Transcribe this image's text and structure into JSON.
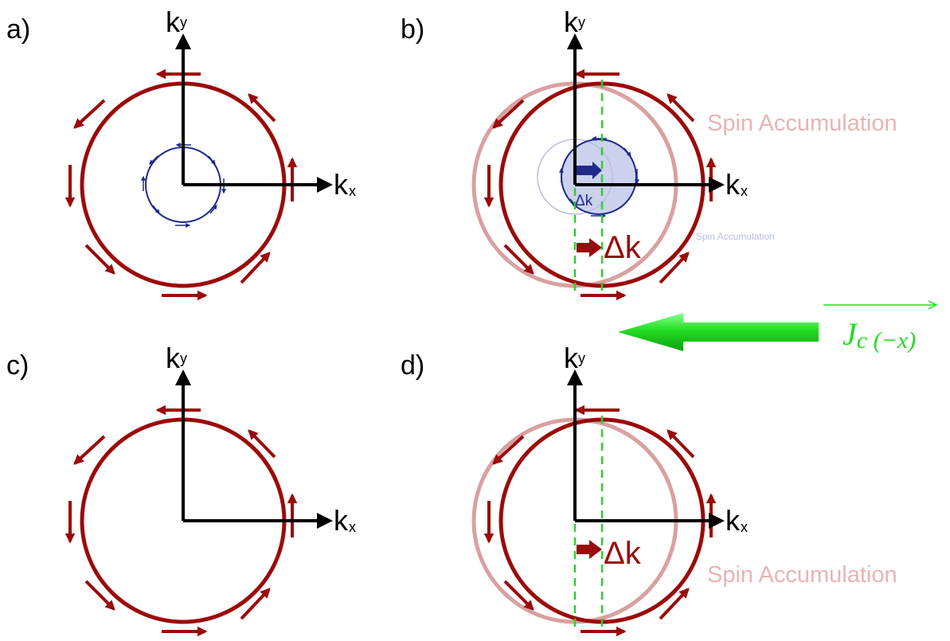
{
  "panels": {
    "a": {
      "label": "a)"
    },
    "b": {
      "label": "b)"
    },
    "c": {
      "label": "c)"
    },
    "d": {
      "label": "d)"
    }
  },
  "axes": {
    "kx_main": "k",
    "kx_sub": "x",
    "ky_main": "k",
    "ky_sub": "y"
  },
  "annotations": {
    "delta_k": "Δk",
    "spin_accumulation": "Spin Accumulation",
    "current_main": "J",
    "current_sub": "c (−x)"
  },
  "colors": {
    "fermi_contour": "#9b0a0a",
    "shifted_contour": "#d9a0a0",
    "inner_contour": "#1f2a8a",
    "current_arrow": "#22dd22",
    "dashed_line": "#33cc33"
  }
}
